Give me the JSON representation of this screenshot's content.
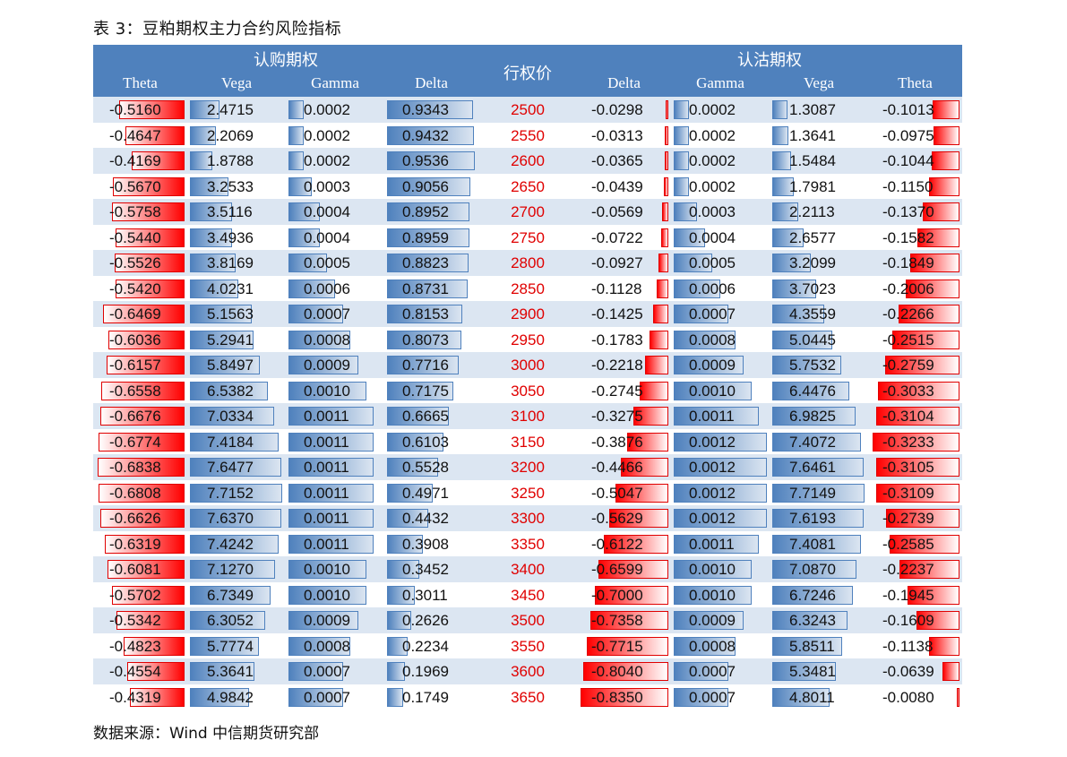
{
  "title": "表 3：豆粕期权主力合约风险指标",
  "source": "数据来源：Wind  中信期货研究部",
  "header": {
    "call_group": "认购期权",
    "put_group": "认沽期权",
    "strike": "行权价",
    "call_cols": [
      "Theta",
      "Vega",
      "Gamma",
      "Delta"
    ],
    "put_cols": [
      "Delta",
      "Gamma",
      "Vega",
      "Theta"
    ]
  },
  "colors": {
    "header_bg": "#4f81bd",
    "alt_row": "#dce6f2",
    "strike_text": "#e00000",
    "bar_blue": "#4f81bd",
    "bar_red": "#ff0000"
  },
  "rows": [
    {
      "call_theta": "-0.5160",
      "call_vega": "2.4715",
      "call_gamma": "0.0002",
      "call_delta": "0.9343",
      "strike": "2500",
      "put_delta": "-0.0298",
      "put_gamma": "0.0002",
      "put_vega": "1.3087",
      "put_theta": "-0.1013"
    },
    {
      "call_theta": "-0.4647",
      "call_vega": "2.2069",
      "call_gamma": "0.0002",
      "call_delta": "0.9432",
      "strike": "2550",
      "put_delta": "-0.0313",
      "put_gamma": "0.0002",
      "put_vega": "1.3641",
      "put_theta": "-0.0975"
    },
    {
      "call_theta": "-0.4169",
      "call_vega": "1.8788",
      "call_gamma": "0.0002",
      "call_delta": "0.9536",
      "strike": "2600",
      "put_delta": "-0.0365",
      "put_gamma": "0.0002",
      "put_vega": "1.5484",
      "put_theta": "-0.1044"
    },
    {
      "call_theta": "-0.5670",
      "call_vega": "3.2533",
      "call_gamma": "0.0003",
      "call_delta": "0.9056",
      "strike": "2650",
      "put_delta": "-0.0439",
      "put_gamma": "0.0002",
      "put_vega": "1.7981",
      "put_theta": "-0.1150"
    },
    {
      "call_theta": "-0.5758",
      "call_vega": "3.5116",
      "call_gamma": "0.0004",
      "call_delta": "0.8952",
      "strike": "2700",
      "put_delta": "-0.0569",
      "put_gamma": "0.0003",
      "put_vega": "2.2113",
      "put_theta": "-0.1370"
    },
    {
      "call_theta": "-0.5440",
      "call_vega": "3.4936",
      "call_gamma": "0.0004",
      "call_delta": "0.8959",
      "strike": "2750",
      "put_delta": "-0.0722",
      "put_gamma": "0.0004",
      "put_vega": "2.6577",
      "put_theta": "-0.1582"
    },
    {
      "call_theta": "-0.5526",
      "call_vega": "3.8169",
      "call_gamma": "0.0005",
      "call_delta": "0.8823",
      "strike": "2800",
      "put_delta": "-0.0927",
      "put_gamma": "0.0005",
      "put_vega": "3.2099",
      "put_theta": "-0.1849"
    },
    {
      "call_theta": "-0.5420",
      "call_vega": "4.0231",
      "call_gamma": "0.0006",
      "call_delta": "0.8731",
      "strike": "2850",
      "put_delta": "-0.1128",
      "put_gamma": "0.0006",
      "put_vega": "3.7023",
      "put_theta": "-0.2006"
    },
    {
      "call_theta": "-0.6469",
      "call_vega": "5.1563",
      "call_gamma": "0.0007",
      "call_delta": "0.8153",
      "strike": "2900",
      "put_delta": "-0.1425",
      "put_gamma": "0.0007",
      "put_vega": "4.3559",
      "put_theta": "-0.2266"
    },
    {
      "call_theta": "-0.6036",
      "call_vega": "5.2941",
      "call_gamma": "0.0008",
      "call_delta": "0.8073",
      "strike": "2950",
      "put_delta": "-0.1783",
      "put_gamma": "0.0008",
      "put_vega": "5.0445",
      "put_theta": "-0.2515"
    },
    {
      "call_theta": "-0.6157",
      "call_vega": "5.8497",
      "call_gamma": "0.0009",
      "call_delta": "0.7716",
      "strike": "3000",
      "put_delta": "-0.2218",
      "put_gamma": "0.0009",
      "put_vega": "5.7532",
      "put_theta": "-0.2759"
    },
    {
      "call_theta": "-0.6558",
      "call_vega": "6.5382",
      "call_gamma": "0.0010",
      "call_delta": "0.7175",
      "strike": "3050",
      "put_delta": "-0.2745",
      "put_gamma": "0.0010",
      "put_vega": "6.4476",
      "put_theta": "-0.3033"
    },
    {
      "call_theta": "-0.6676",
      "call_vega": "7.0334",
      "call_gamma": "0.0011",
      "call_delta": "0.6665",
      "strike": "3100",
      "put_delta": "-0.3275",
      "put_gamma": "0.0011",
      "put_vega": "6.9825",
      "put_theta": "-0.3104"
    },
    {
      "call_theta": "-0.6774",
      "call_vega": "7.4184",
      "call_gamma": "0.0011",
      "call_delta": "0.6103",
      "strike": "3150",
      "put_delta": "-0.3876",
      "put_gamma": "0.0012",
      "put_vega": "7.4072",
      "put_theta": "-0.3233"
    },
    {
      "call_theta": "-0.6838",
      "call_vega": "7.6477",
      "call_gamma": "0.0011",
      "call_delta": "0.5528",
      "strike": "3200",
      "put_delta": "-0.4466",
      "put_gamma": "0.0012",
      "put_vega": "7.6461",
      "put_theta": "-0.3105"
    },
    {
      "call_theta": "-0.6808",
      "call_vega": "7.7152",
      "call_gamma": "0.0011",
      "call_delta": "0.4971",
      "strike": "3250",
      "put_delta": "-0.5047",
      "put_gamma": "0.0012",
      "put_vega": "7.7149",
      "put_theta": "-0.3109"
    },
    {
      "call_theta": "-0.6626",
      "call_vega": "7.6370",
      "call_gamma": "0.0011",
      "call_delta": "0.4432",
      "strike": "3300",
      "put_delta": "-0.5629",
      "put_gamma": "0.0012",
      "put_vega": "7.6193",
      "put_theta": "-0.2739"
    },
    {
      "call_theta": "-0.6319",
      "call_vega": "7.4242",
      "call_gamma": "0.0011",
      "call_delta": "0.3908",
      "strike": "3350",
      "put_delta": "-0.6122",
      "put_gamma": "0.0011",
      "put_vega": "7.4081",
      "put_theta": "-0.2585"
    },
    {
      "call_theta": "-0.6081",
      "call_vega": "7.1270",
      "call_gamma": "0.0010",
      "call_delta": "0.3452",
      "strike": "3400",
      "put_delta": "-0.6599",
      "put_gamma": "0.0010",
      "put_vega": "7.0870",
      "put_theta": "-0.2237"
    },
    {
      "call_theta": "-0.5702",
      "call_vega": "6.7349",
      "call_gamma": "0.0010",
      "call_delta": "0.3011",
      "strike": "3450",
      "put_delta": "-0.7000",
      "put_gamma": "0.0010",
      "put_vega": "6.7246",
      "put_theta": "-0.1945"
    },
    {
      "call_theta": "-0.5342",
      "call_vega": "6.3052",
      "call_gamma": "0.0009",
      "call_delta": "0.2626",
      "strike": "3500",
      "put_delta": "-0.7358",
      "put_gamma": "0.0009",
      "put_vega": "6.3243",
      "put_theta": "-0.1609"
    },
    {
      "call_theta": "-0.4823",
      "call_vega": "5.7774",
      "call_gamma": "0.0008",
      "call_delta": "0.2234",
      "strike": "3550",
      "put_delta": "-0.7715",
      "put_gamma": "0.0008",
      "put_vega": "5.8511",
      "put_theta": "-0.1138"
    },
    {
      "call_theta": "-0.4554",
      "call_vega": "5.3641",
      "call_gamma": "0.0007",
      "call_delta": "0.1969",
      "strike": "3600",
      "put_delta": "-0.8040",
      "put_gamma": "0.0007",
      "put_vega": "5.3481",
      "put_theta": "-0.0639"
    },
    {
      "call_theta": "-0.4319",
      "call_vega": "4.9842",
      "call_gamma": "0.0007",
      "call_delta": "0.1749",
      "strike": "3650",
      "put_delta": "-0.8350",
      "put_gamma": "0.0007",
      "put_vega": "4.8011",
      "put_theta": "-0.0080"
    }
  ]
}
